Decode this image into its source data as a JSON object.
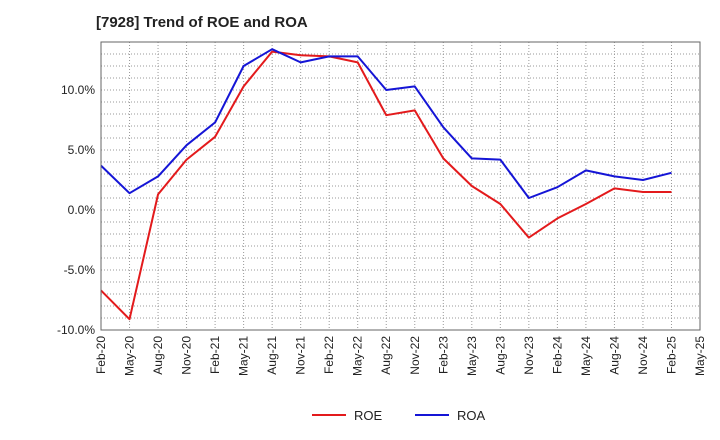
{
  "chart_data": {
    "type": "line",
    "title": "[7928]  Trend of ROE and ROA",
    "xlabel": "",
    "ylabel": "",
    "ylim": [
      -10,
      14
    ],
    "yticks": [
      -10,
      -5,
      0,
      5,
      10
    ],
    "ytick_labels": [
      "-10.0%",
      "-5.0%",
      "0.0%",
      "5.0%",
      "10.0%"
    ],
    "x": [
      "Feb-20",
      "May-20",
      "Aug-20",
      "Nov-20",
      "Feb-21",
      "May-21",
      "Aug-21",
      "Nov-21",
      "Feb-22",
      "May-22",
      "Aug-22",
      "Nov-22",
      "Feb-23",
      "May-23",
      "Aug-23",
      "Nov-23",
      "Feb-24",
      "May-24",
      "Aug-24",
      "Nov-24",
      "Feb-25",
      "May-25"
    ],
    "grid": true,
    "legend_position": "bottom-center",
    "series": [
      {
        "name": "ROE",
        "color": "#e31a1c",
        "values": [
          -6.7,
          -9.1,
          1.3,
          4.2,
          6.1,
          10.3,
          13.2,
          12.9,
          12.8,
          12.3,
          7.9,
          8.3,
          4.3,
          2.0,
          0.5,
          -2.3,
          -0.7,
          0.5,
          1.8,
          1.5,
          1.5,
          null
        ]
      },
      {
        "name": "ROA",
        "color": "#1515d6",
        "values": [
          3.7,
          1.4,
          2.8,
          5.4,
          7.3,
          12.0,
          13.4,
          12.3,
          12.8,
          12.8,
          10.0,
          10.3,
          6.9,
          4.3,
          4.2,
          1.0,
          1.9,
          3.3,
          2.8,
          2.5,
          3.1,
          null
        ]
      }
    ]
  }
}
